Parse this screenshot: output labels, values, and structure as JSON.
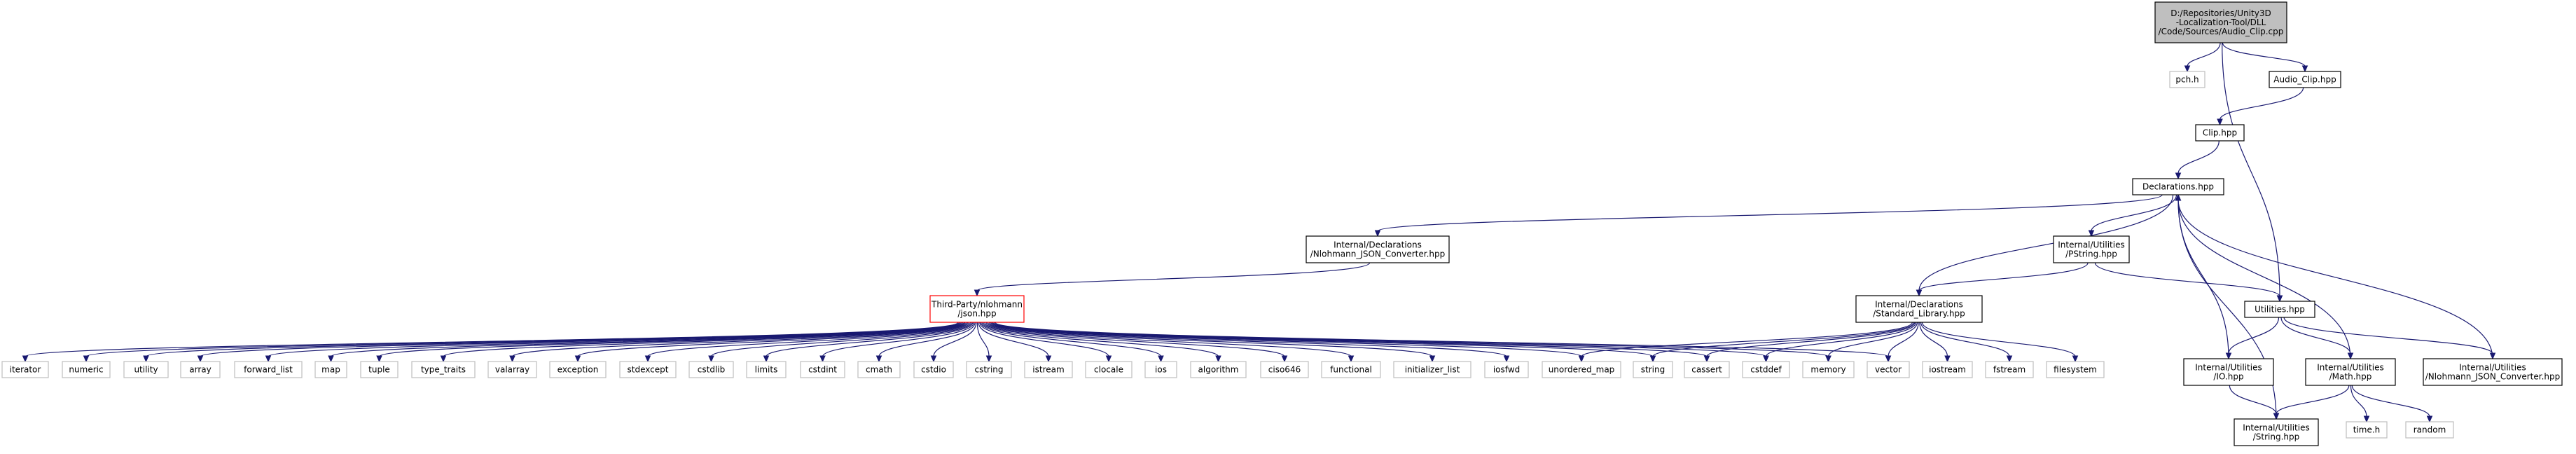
{
  "colors": {
    "edge": "#191970",
    "root_fill": "#bfbfbf",
    "root_stroke": "#000000",
    "file_stroke": "#000000",
    "system_stroke": "#bfbfbf",
    "incomplete_stroke": "#ff0000"
  },
  "nodes": [
    {
      "id": "root",
      "kind": "root",
      "lines": [
        "D:/Repositories/Unity3D",
        "-Localization-Tool/DLL",
        "/Code/Sources/Audio_Clip.cpp"
      ]
    },
    {
      "id": "pch",
      "kind": "system",
      "lines": [
        "pch.h"
      ]
    },
    {
      "id": "audio_clip",
      "kind": "file",
      "lines": [
        "Audio_Clip.hpp"
      ]
    },
    {
      "id": "clip",
      "kind": "file",
      "lines": [
        "Clip.hpp"
      ]
    },
    {
      "id": "declarations",
      "kind": "file",
      "lines": [
        "Declarations.hpp"
      ]
    },
    {
      "id": "nlohmann_conv",
      "kind": "file",
      "lines": [
        "Internal/Declarations",
        "/Nlohmann_JSON_Converter.hpp"
      ]
    },
    {
      "id": "pstring",
      "kind": "file",
      "lines": [
        "Internal/Utilities",
        "/PString.hpp"
      ]
    },
    {
      "id": "json",
      "kind": "incomplete",
      "lines": [
        "Third-Party/nlohmann",
        "/json.hpp"
      ]
    },
    {
      "id": "stdlib",
      "kind": "file",
      "lines": [
        "Internal/Declarations",
        "/Standard_Library.hpp"
      ]
    },
    {
      "id": "utilities",
      "kind": "file",
      "lines": [
        "Utilities.hpp"
      ]
    },
    {
      "id": "io",
      "kind": "file",
      "lines": [
        "Internal/Utilities",
        "/IO.hpp"
      ]
    },
    {
      "id": "math",
      "kind": "file",
      "lines": [
        "Internal/Utilities",
        "/Math.hpp"
      ]
    },
    {
      "id": "util_nlohmann",
      "kind": "file",
      "lines": [
        "Internal/Utilities",
        "/Nlohmann_JSON_Converter.hpp"
      ]
    },
    {
      "id": "string_hpp",
      "kind": "file",
      "lines": [
        "Internal/Utilities",
        "/String.hpp"
      ]
    },
    {
      "id": "time",
      "kind": "system",
      "lines": [
        "time.h"
      ]
    },
    {
      "id": "random",
      "kind": "system",
      "lines": [
        "random"
      ]
    },
    {
      "id": "iterator",
      "kind": "system",
      "lines": [
        "iterator"
      ]
    },
    {
      "id": "numeric",
      "kind": "system",
      "lines": [
        "numeric"
      ]
    },
    {
      "id": "utility",
      "kind": "system",
      "lines": [
        "utility"
      ]
    },
    {
      "id": "array",
      "kind": "system",
      "lines": [
        "array"
      ]
    },
    {
      "id": "forward_list",
      "kind": "system",
      "lines": [
        "forward_list"
      ]
    },
    {
      "id": "map",
      "kind": "system",
      "lines": [
        "map"
      ]
    },
    {
      "id": "tuple",
      "kind": "system",
      "lines": [
        "tuple"
      ]
    },
    {
      "id": "type_traits",
      "kind": "system",
      "lines": [
        "type_traits"
      ]
    },
    {
      "id": "valarray",
      "kind": "system",
      "lines": [
        "valarray"
      ]
    },
    {
      "id": "exception",
      "kind": "system",
      "lines": [
        "exception"
      ]
    },
    {
      "id": "stdexcept",
      "kind": "system",
      "lines": [
        "stdexcept"
      ]
    },
    {
      "id": "cstdlib",
      "kind": "system",
      "lines": [
        "cstdlib"
      ]
    },
    {
      "id": "limits",
      "kind": "system",
      "lines": [
        "limits"
      ]
    },
    {
      "id": "cstdint",
      "kind": "system",
      "lines": [
        "cstdint"
      ]
    },
    {
      "id": "cmath",
      "kind": "system",
      "lines": [
        "cmath"
      ]
    },
    {
      "id": "cstdio",
      "kind": "system",
      "lines": [
        "cstdio"
      ]
    },
    {
      "id": "cstring",
      "kind": "system",
      "lines": [
        "cstring"
      ]
    },
    {
      "id": "istream",
      "kind": "system",
      "lines": [
        "istream"
      ]
    },
    {
      "id": "clocale",
      "kind": "system",
      "lines": [
        "clocale"
      ]
    },
    {
      "id": "ios",
      "kind": "system",
      "lines": [
        "ios"
      ]
    },
    {
      "id": "algorithm",
      "kind": "system",
      "lines": [
        "algorithm"
      ]
    },
    {
      "id": "ciso646",
      "kind": "system",
      "lines": [
        "ciso646"
      ]
    },
    {
      "id": "functional",
      "kind": "system",
      "lines": [
        "functional"
      ]
    },
    {
      "id": "initializer_list",
      "kind": "system",
      "lines": [
        "initializer_list"
      ]
    },
    {
      "id": "iosfwd",
      "kind": "system",
      "lines": [
        "iosfwd"
      ]
    },
    {
      "id": "unordered_map",
      "kind": "system",
      "lines": [
        "unordered_map"
      ]
    },
    {
      "id": "string",
      "kind": "system",
      "lines": [
        "string"
      ]
    },
    {
      "id": "cassert",
      "kind": "system",
      "lines": [
        "cassert"
      ]
    },
    {
      "id": "cstddef",
      "kind": "system",
      "lines": [
        "cstddef"
      ]
    },
    {
      "id": "memory",
      "kind": "system",
      "lines": [
        "memory"
      ]
    },
    {
      "id": "vector",
      "kind": "system",
      "lines": [
        "vector"
      ]
    },
    {
      "id": "iostream",
      "kind": "system",
      "lines": [
        "iostream"
      ]
    },
    {
      "id": "fstream",
      "kind": "system",
      "lines": [
        "fstream"
      ]
    },
    {
      "id": "filesystem",
      "kind": "system",
      "lines": [
        "filesystem"
      ]
    }
  ],
  "edges": [
    [
      "root",
      "pch"
    ],
    [
      "root",
      "audio_clip"
    ],
    [
      "root",
      "utilities"
    ],
    [
      "audio_clip",
      "clip"
    ],
    [
      "clip",
      "declarations"
    ],
    [
      "declarations",
      "nlohmann_conv"
    ],
    [
      "declarations",
      "pstring"
    ],
    [
      "declarations",
      "stdlib"
    ],
    [
      "nlohmann_conv",
      "json"
    ],
    [
      "pstring",
      "stdlib"
    ],
    [
      "pstring",
      "utilities"
    ],
    [
      "utilities",
      "io"
    ],
    [
      "utilities",
      "math"
    ],
    [
      "utilities",
      "util_nlohmann"
    ],
    [
      "io",
      "declarations"
    ],
    [
      "math",
      "declarations"
    ],
    [
      "util_nlohmann",
      "declarations"
    ],
    [
      "string_hpp",
      "declarations"
    ],
    [
      "math",
      "string_hpp"
    ],
    [
      "math",
      "time"
    ],
    [
      "math",
      "random"
    ],
    [
      "io",
      "string_hpp"
    ],
    [
      "json",
      "iterator"
    ],
    [
      "json",
      "numeric"
    ],
    [
      "json",
      "utility"
    ],
    [
      "json",
      "array"
    ],
    [
      "json",
      "forward_list"
    ],
    [
      "json",
      "map"
    ],
    [
      "json",
      "tuple"
    ],
    [
      "json",
      "type_traits"
    ],
    [
      "json",
      "valarray"
    ],
    [
      "json",
      "exception"
    ],
    [
      "json",
      "stdexcept"
    ],
    [
      "json",
      "cstdlib"
    ],
    [
      "json",
      "limits"
    ],
    [
      "json",
      "cstdint"
    ],
    [
      "json",
      "cmath"
    ],
    [
      "json",
      "cstdio"
    ],
    [
      "json",
      "cstring"
    ],
    [
      "json",
      "istream"
    ],
    [
      "json",
      "clocale"
    ],
    [
      "json",
      "ios"
    ],
    [
      "json",
      "algorithm"
    ],
    [
      "json",
      "ciso646"
    ],
    [
      "json",
      "functional"
    ],
    [
      "json",
      "initializer_list"
    ],
    [
      "json",
      "iosfwd"
    ],
    [
      "json",
      "unordered_map"
    ],
    [
      "json",
      "string"
    ],
    [
      "json",
      "cassert"
    ],
    [
      "json",
      "cstddef"
    ],
    [
      "json",
      "memory"
    ],
    [
      "json",
      "vector"
    ],
    [
      "stdlib",
      "unordered_map"
    ],
    [
      "stdlib",
      "string"
    ],
    [
      "stdlib",
      "cassert"
    ],
    [
      "stdlib",
      "cstddef"
    ],
    [
      "stdlib",
      "memory"
    ],
    [
      "stdlib",
      "vector"
    ],
    [
      "stdlib",
      "iostream"
    ],
    [
      "stdlib",
      "fstream"
    ],
    [
      "stdlib",
      "filesystem"
    ]
  ]
}
